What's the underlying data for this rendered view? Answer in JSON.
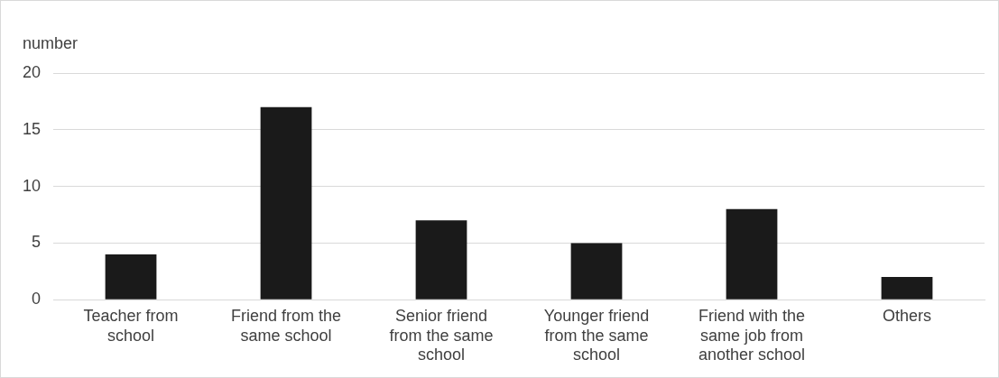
{
  "chart_data": {
    "type": "bar",
    "ylabel": "number",
    "categories": [
      "Teacher from school",
      "Friend from the same school",
      "Senior friend from the same school",
      "Younger friend from the same school",
      "Friend with the same job from another school",
      "Others"
    ],
    "values": [
      4,
      17,
      7,
      5,
      8,
      2
    ],
    "color": "#1a1a1a",
    "ylim": [
      0,
      20
    ],
    "yticks": [
      0,
      5,
      10,
      15,
      20
    ],
    "grid": "y",
    "legend": false
  }
}
